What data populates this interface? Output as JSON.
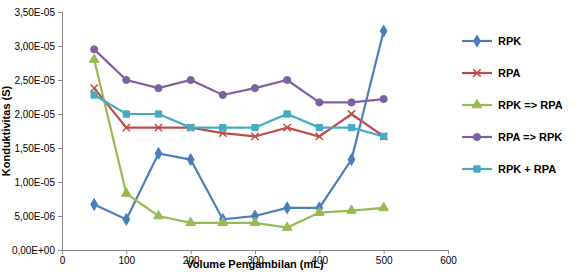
{
  "chart_data": {
    "type": "line",
    "x_label": "Volume Pengambilan (mL)",
    "y_label": "Konduktivitas (S)",
    "x": [
      50,
      100,
      150,
      200,
      250,
      300,
      350,
      400,
      450,
      500
    ],
    "xlim": [
      0,
      600
    ],
    "xticks": [
      0,
      100,
      200,
      300,
      400,
      500,
      600
    ],
    "ylim": [
      0,
      3.5e-05
    ],
    "yticks": [
      {
        "value": 0,
        "label": "0,00E+00"
      },
      {
        "value": 5e-06,
        "label": "5,00E-06"
      },
      {
        "value": 1e-05,
        "label": "1,00E-05"
      },
      {
        "value": 1.5e-05,
        "label": "1,50E-05"
      },
      {
        "value": 2e-05,
        "label": "2,00E-05"
      },
      {
        "value": 2.5e-05,
        "label": "2,50E-05"
      },
      {
        "value": 3e-05,
        "label": "3,00E-05"
      },
      {
        "value": 3.5e-05,
        "label": "3,50E-05"
      }
    ],
    "grid": false,
    "legend": "right",
    "series": [
      {
        "name": "RPK",
        "color": "#4a7ebb",
        "marker": "diamond",
        "values": [
          6.7e-06,
          4.5e-06,
          1.42e-05,
          1.33e-05,
          4.5e-06,
          5e-06,
          6.2e-06,
          6.2e-06,
          1.33e-05,
          3.22e-05
        ]
      },
      {
        "name": "RPA",
        "color": "#be4b48",
        "marker": "x",
        "values": [
          2.38e-05,
          1.8e-05,
          1.8e-05,
          1.8e-05,
          1.72e-05,
          1.67e-05,
          1.8e-05,
          1.67e-05,
          2e-05,
          1.67e-05
        ]
      },
      {
        "name": "RPK => RPA",
        "color": "#98b954",
        "marker": "triangle",
        "values": [
          2.8e-05,
          8.3e-06,
          5e-06,
          4e-06,
          4e-06,
          4e-06,
          3.3e-06,
          5.5e-06,
          5.8e-06,
          6.2e-06
        ]
      },
      {
        "name": "RPA => RPK",
        "color": "#7d60a0",
        "marker": "circle",
        "values": [
          2.95e-05,
          2.5e-05,
          2.38e-05,
          2.5e-05,
          2.28e-05,
          2.38e-05,
          2.5e-05,
          2.17e-05,
          2.17e-05,
          2.22e-05
        ]
      },
      {
        "name": "RPK + RPA",
        "color": "#46aac5",
        "marker": "square",
        "values": [
          2.28e-05,
          2e-05,
          2e-05,
          1.8e-05,
          1.8e-05,
          1.8e-05,
          2e-05,
          1.8e-05,
          1.8e-05,
          1.67e-05
        ]
      }
    ]
  }
}
